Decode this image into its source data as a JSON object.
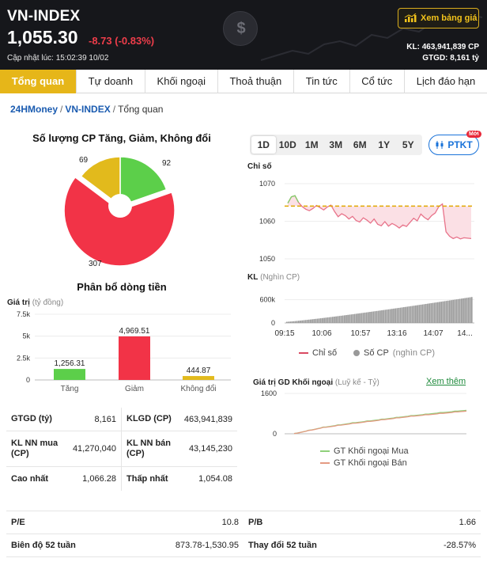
{
  "header": {
    "title": "VN-INDEX",
    "price": "1,055.30",
    "change": "-8.73 (-0.83%)",
    "updated": "Cập nhật lúc: 15:02:39 10/02",
    "board_button": "Xem bảng giá",
    "kl": "KL: 463,941,839 CP",
    "gtgd": "GTGD: 8,161 tỷ",
    "logo_glyph": "$"
  },
  "tabs": [
    {
      "label": "Tổng quan",
      "active": true
    },
    {
      "label": "Tự doanh"
    },
    {
      "label": "Khối ngoại"
    },
    {
      "label": "Thoả thuận"
    },
    {
      "label": "Tin tức"
    },
    {
      "label": "Cổ tức"
    },
    {
      "label": "Lịch đáo hạn"
    }
  ],
  "breadcrumb": {
    "home": "24HMoney",
    "index": "VN-INDEX",
    "current": "Tổng quan",
    "sep": "/"
  },
  "pie": {
    "title": "Số lượng CP Tăng, Giảm, Không đổi",
    "labels": {
      "up": "92",
      "down": "307",
      "flat": "69"
    }
  },
  "flow": {
    "title": "Phân bổ dòng tiền",
    "axis_label": "Giá trị",
    "axis_unit": "(tỷ đồng)",
    "ticks": [
      "7.5k",
      "5k",
      "2.5k",
      "0"
    ]
  },
  "stats": {
    "gtgd_label": "GTGD (tỷ)",
    "gtgd_value": "8,161",
    "klgd_label": "KLGD (CP)",
    "klgd_value": "463,941,839",
    "nn_buy_label": "KL NN mua (CP)",
    "nn_buy_value": "41,270,040",
    "nn_sell_label": "KL NN bán (CP)",
    "nn_sell_value": "43,145,230",
    "high_label": "Cao nhất",
    "high_value": "1,066.28",
    "low_label": "Thấp nhất",
    "low_value": "1,054.08"
  },
  "periods": [
    "1D",
    "10D",
    "1M",
    "3M",
    "6M",
    "1Y",
    "5Y"
  ],
  "ptkt": {
    "label": "PTKT",
    "badge": "Mới"
  },
  "price_chart": {
    "label": "Chỉ số",
    "yticks": [
      "1070",
      "1060",
      "1050"
    ]
  },
  "volume_chart": {
    "label": "KL",
    "unit": "(Nghìn CP)",
    "yticks": [
      "600k",
      "0"
    ],
    "xticks": [
      "09:15",
      "10:06",
      "10:57",
      "13:16",
      "14:07",
      "14..."
    ]
  },
  "legend_main": {
    "index": "Chỉ số",
    "volume": "Số CP",
    "volume_unit": "(nghìn CP)"
  },
  "foreign": {
    "title": "Giá trị GD Khối ngoại",
    "unit": "(Luỹ kế - Tỷ)",
    "see_more": "Xem thêm",
    "yticks": [
      "1600",
      "0"
    ],
    "legend_buy": "GT Khối ngoại Mua",
    "legend_sell": "GT Khối ngoại Bán"
  },
  "ratios": {
    "pe_label": "P/E",
    "pe_value": "10.8",
    "pb_label": "P/B",
    "pb_value": "1.66",
    "range_label": "Biên độ 52 tuần",
    "range_value": "873.78-1,530.95",
    "change_label": "Thay đổi 52 tuần",
    "change_value": "-28.57%"
  },
  "colors": {
    "accent": "#e6b619",
    "up": "#5ccf4a",
    "down": "#f23347",
    "flat": "#e2ba1c",
    "line_down": "#e8738a",
    "line_up": "#7fd06a",
    "reference": "#e0a800",
    "volume": "#999999"
  },
  "chart_data": [
    {
      "type": "pie",
      "title": "Số lượng CP Tăng, Giảm, Không đổi",
      "categories": [
        "Tăng",
        "Giảm",
        "Không đổi"
      ],
      "values": [
        92,
        307,
        69
      ]
    },
    {
      "type": "bar",
      "title": "Phân bổ dòng tiền",
      "categories": [
        "Tăng",
        "Giảm",
        "Không đổi"
      ],
      "values": [
        1256.31,
        4969.51,
        444.87
      ],
      "value_labels": [
        "1,256.31",
        "4,969.51",
        "444.87"
      ],
      "ylabel": "Giá trị (tỷ đồng)",
      "ylim": [
        0,
        7500
      ]
    },
    {
      "type": "line",
      "title": "Chỉ số",
      "ylim": [
        1050,
        1070
      ],
      "reference": 1064.03,
      "x": [
        "09:15",
        "10:06",
        "10:57",
        "13:16",
        "14:07",
        "14:45"
      ],
      "values": [
        1064.5,
        1063.2,
        1060.8,
        1059.6,
        1061.5,
        1054.8
      ]
    },
    {
      "type": "area",
      "title": "KL",
      "ylabel": "Nghìn CP",
      "ylim": [
        0,
        900000
      ],
      "x": [
        "09:15",
        "10:06",
        "10:57",
        "13:16",
        "14:07",
        "14:45"
      ],
      "values": [
        40000,
        150000,
        230000,
        310000,
        420000,
        660000
      ]
    },
    {
      "type": "line",
      "title": "Giá trị GD Khối ngoại",
      "ylabel": "Luỹ kế - Tỷ",
      "ylim": [
        0,
        1600
      ],
      "series": [
        {
          "name": "GT Khối ngoại Mua",
          "values": [
            0,
            250,
            420,
            560,
            700,
            820,
            930
          ]
        },
        {
          "name": "GT Khối ngoại Bán",
          "values": [
            0,
            240,
            400,
            540,
            680,
            790,
            900
          ]
        }
      ]
    }
  ]
}
